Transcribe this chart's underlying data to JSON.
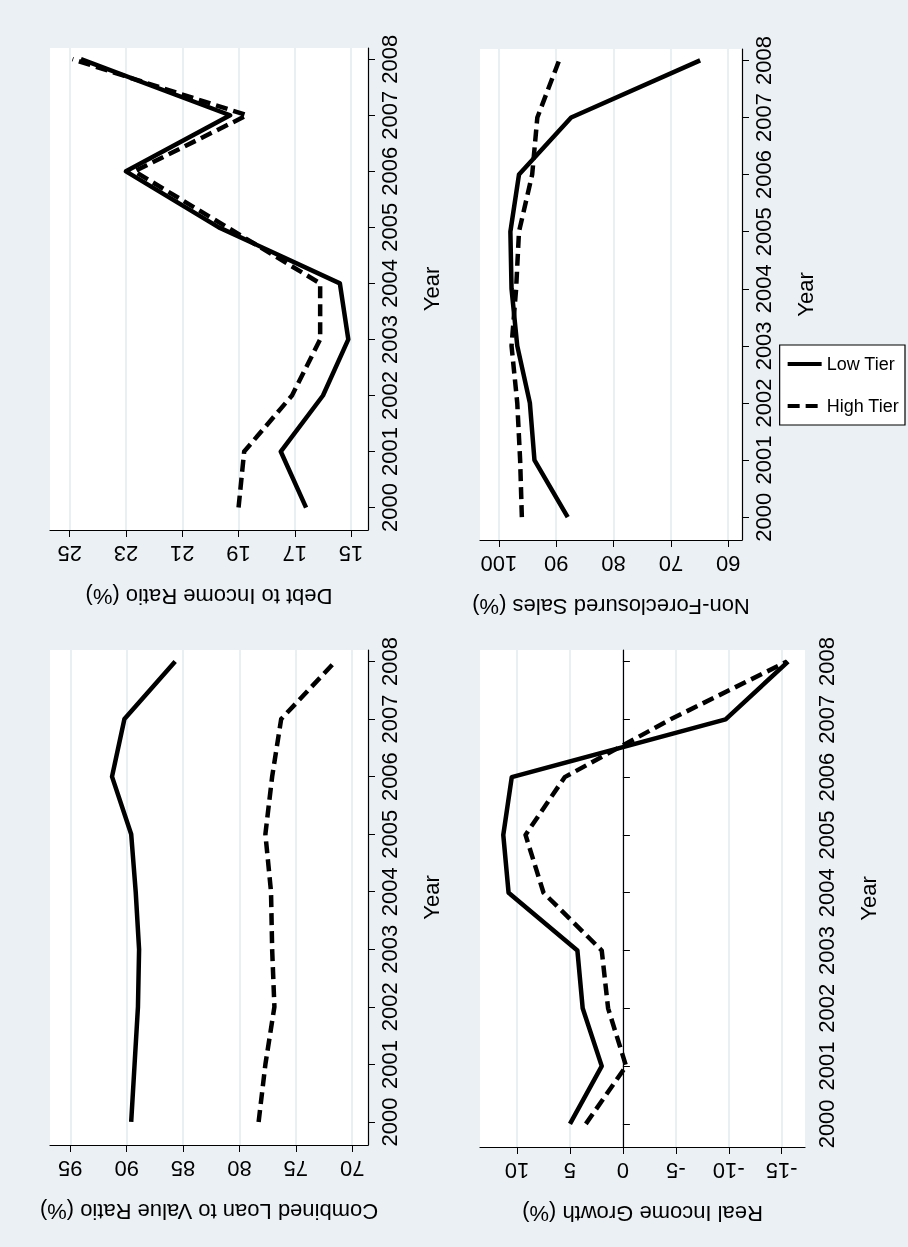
{
  "chart_data": [
    {
      "type": "line",
      "xlabel": "Debt to Income Ratio (%)",
      "ylabel": "Year",
      "xlim": [
        25.7,
        14.4
      ],
      "xticks": [
        15,
        17,
        19,
        21,
        23,
        25
      ],
      "ylim": [
        1999.6,
        2008.2
      ],
      "yticks": [
        2000,
        2001,
        2002,
        2003,
        2004,
        2005,
        2006,
        2007,
        2008
      ],
      "grid": "x",
      "series": [
        {
          "color": "#000000",
          "line_style": "solid",
          "x": [
            16.6,
            17.5,
            16.0,
            15.1,
            15.4,
            19.7,
            23.0,
            19.3,
            24.6
          ],
          "values": [
            2000,
            2001,
            2002,
            2003,
            2004,
            2005,
            2006,
            2007,
            2008
          ]
        },
        {
          "color": "#000000",
          "line_style": "dashed",
          "x": [
            19.0,
            18.8,
            17.1,
            16.1,
            16.1,
            19.4,
            22.7,
            18.7,
            24.9
          ],
          "values": [
            2000,
            2001,
            2002,
            2003,
            2004,
            2005,
            2006,
            2007,
            2008
          ]
        }
      ]
    },
    {
      "type": "line",
      "xlabel": "Non-Foreclosured Sales (%)",
      "ylabel": "Year",
      "xlim": [
        103.3,
        57.6
      ],
      "xticks": [
        60,
        70,
        80,
        90,
        100
      ],
      "ylim": [
        1999.6,
        2008.2
      ],
      "yticks": [
        2000,
        2001,
        2002,
        2003,
        2004,
        2005,
        2006,
        2007,
        2008
      ],
      "grid": "x",
      "legend": "right",
      "series": [
        {
          "name": "Low Tier",
          "color": "#000000",
          "line_style": "solid",
          "x": [
            88.0,
            93.8,
            94.6,
            96.8,
            97.8,
            98.0,
            96.5,
            87.4,
            64.9
          ],
          "values": [
            2000,
            2001,
            2002,
            2003,
            2004,
            2005,
            2006,
            2007,
            2008
          ]
        },
        {
          "name": "High Tier",
          "color": "#000000",
          "line_style": "dashed",
          "x": [
            96.0,
            96.3,
            96.8,
            97.8,
            97.0,
            96.5,
            94.2,
            93.3,
            89.5
          ],
          "values": [
            2000,
            2001,
            2002,
            2003,
            2004,
            2005,
            2006,
            2007,
            2008
          ]
        }
      ]
    },
    {
      "type": "line",
      "xlabel": "Combined Loan to Value Ratio (%)",
      "ylabel": "Year",
      "xlim": [
        96.8,
        68.6
      ],
      "xticks": [
        70,
        75,
        80,
        85,
        90,
        95
      ],
      "ylim": [
        1999.6,
        2008.2
      ],
      "yticks": [
        2000,
        2001,
        2002,
        2003,
        2004,
        2005,
        2006,
        2007,
        2008
      ],
      "grid": "x",
      "series": [
        {
          "color": "#000000",
          "line_style": "solid",
          "x": [
            89.6,
            89.3,
            89.0,
            88.9,
            89.2,
            89.6,
            91.3,
            90.2,
            85.7
          ],
          "values": [
            2000,
            2001,
            2002,
            2003,
            2004,
            2005,
            2006,
            2007,
            2008
          ]
        },
        {
          "color": "#000000",
          "line_style": "dashed",
          "x": [
            78.3,
            77.7,
            76.9,
            77.1,
            77.2,
            77.7,
            77.1,
            76.3,
            71.5
          ],
          "values": [
            2000,
            2001,
            2002,
            2003,
            2004,
            2005,
            2006,
            2007,
            2008
          ]
        }
      ]
    },
    {
      "type": "line",
      "xlabel": "Real Income Growth (%)",
      "ylabel": "Year",
      "xlim": [
        13.5,
        -17.2
      ],
      "xticks": [
        -15,
        -10,
        -5,
        0,
        5,
        10
      ],
      "ylim": [
        1999.6,
        2008.2
      ],
      "yticks": [
        2000,
        2001,
        2002,
        2003,
        2004,
        2005,
        2006,
        2007,
        2008
      ],
      "grid": "x",
      "series": [
        {
          "color": "#000000",
          "line_style": "solid",
          "x": [
            5.0,
            2.0,
            3.8,
            4.3,
            10.8,
            11.3,
            10.5,
            -9.7,
            -15.6
          ],
          "values": [
            2000,
            2001,
            2002,
            2003,
            2004,
            2005,
            2006,
            2007,
            2008
          ]
        },
        {
          "color": "#000000",
          "line_style": "dashed",
          "x": [
            3.5,
            -0.3,
            1.4,
            2.0,
            7.5,
            9.2,
            5.5,
            -4.5,
            -15.5
          ],
          "values": [
            2000,
            2001,
            2002,
            2003,
            2004,
            2005,
            2006,
            2007,
            2008
          ]
        }
      ]
    }
  ]
}
